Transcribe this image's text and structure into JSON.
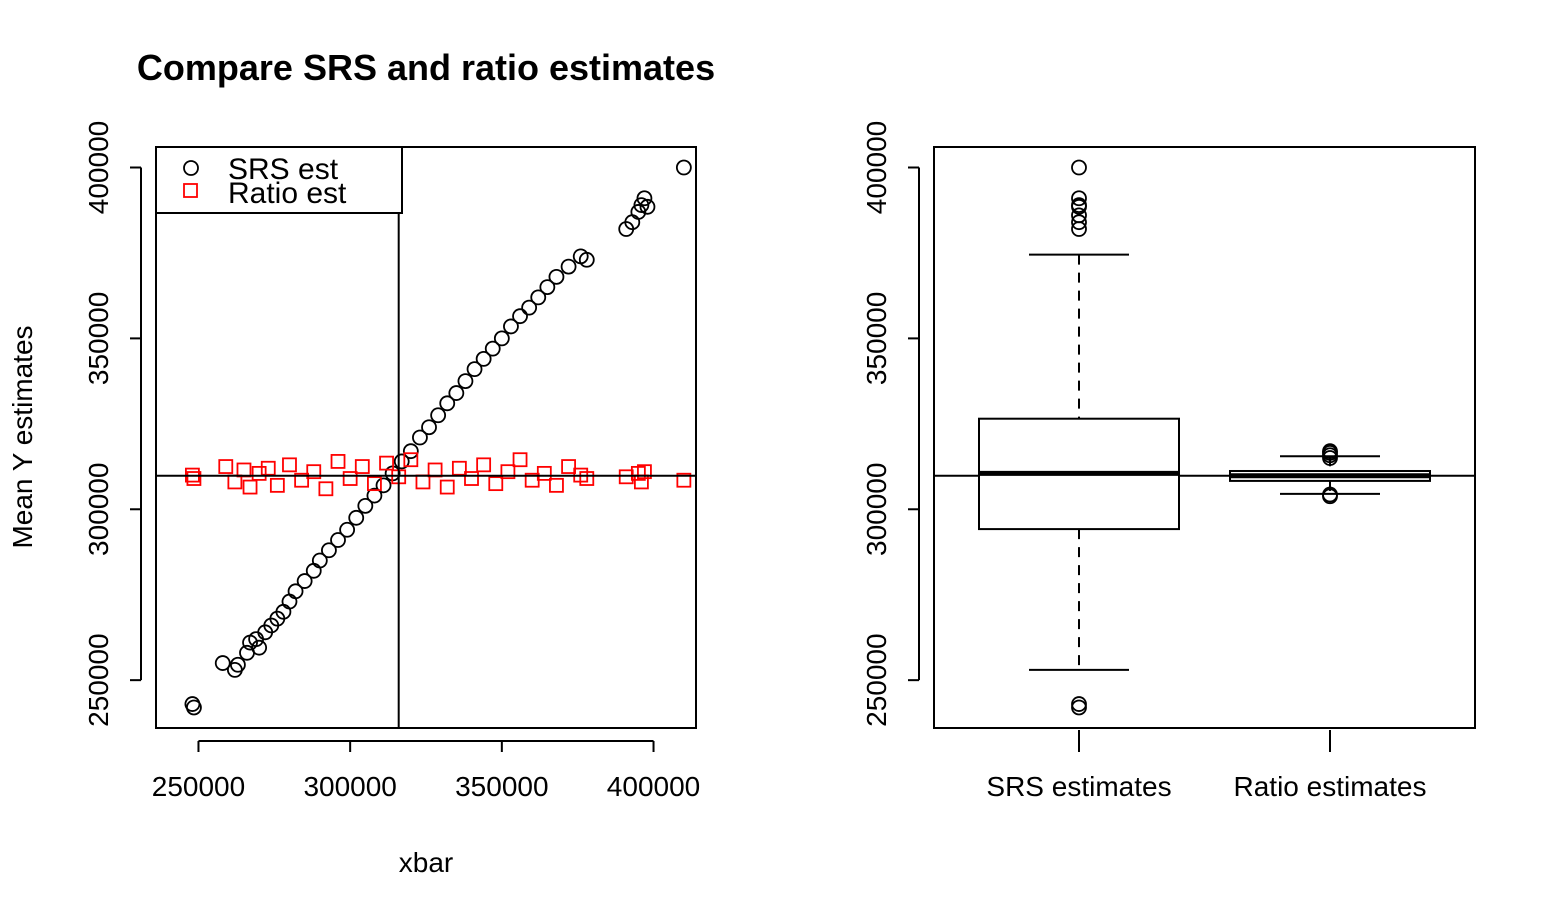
{
  "chart_data": [
    {
      "type": "scatter",
      "title": "Compare SRS and ratio estimates",
      "xlabel": "xbar",
      "ylabel": "Mean Y estimates",
      "xlim": [
        236000,
        414000
      ],
      "ylim": [
        236000,
        406000
      ],
      "xticks": [
        "250000",
        "300000",
        "350000",
        "400000"
      ],
      "yticks": [
        "250000",
        "300000",
        "350000",
        "400000"
      ],
      "reference_lines": {
        "vertical_x": 316000,
        "horizontal_y": 309800
      },
      "legend": {
        "position": "top-left",
        "entries": [
          {
            "label": "SRS est",
            "marker": "circle",
            "color": "#000000"
          },
          {
            "label": "Ratio est",
            "marker": "square",
            "color": "#ff0000"
          }
        ]
      },
      "series": [
        {
          "name": "SRS est",
          "marker": "circle",
          "color": "#000000",
          "points": [
            [
              248000,
              243000
            ],
            [
              248500,
              242000
            ],
            [
              258000,
              255000
            ],
            [
              262000,
              253000
            ],
            [
              263000,
              254500
            ],
            [
              266000,
              258000
            ],
            [
              267000,
              261000
            ],
            [
              269000,
              262000
            ],
            [
              270000,
              259500
            ],
            [
              272000,
              264000
            ],
            [
              274000,
              266000
            ],
            [
              276000,
              268000
            ],
            [
              278000,
              270000
            ],
            [
              280000,
              273000
            ],
            [
              282000,
              276000
            ],
            [
              285000,
              279000
            ],
            [
              288000,
              282000
            ],
            [
              290000,
              285000
            ],
            [
              293000,
              288000
            ],
            [
              296000,
              291000
            ],
            [
              299000,
              294000
            ],
            [
              302000,
              297500
            ],
            [
              305000,
              301000
            ],
            [
              308000,
              304000
            ],
            [
              311000,
              307000
            ],
            [
              314000,
              310500
            ],
            [
              317000,
              314000
            ],
            [
              320000,
              317000
            ],
            [
              323000,
              321000
            ],
            [
              326000,
              324000
            ],
            [
              329000,
              327500
            ],
            [
              332000,
              331000
            ],
            [
              335000,
              334000
            ],
            [
              338000,
              337500
            ],
            [
              341000,
              341000
            ],
            [
              344000,
              344000
            ],
            [
              347000,
              347000
            ],
            [
              350000,
              350000
            ],
            [
              353000,
              353500
            ],
            [
              356000,
              356500
            ],
            [
              359000,
              359000
            ],
            [
              362000,
              362000
            ],
            [
              365000,
              365000
            ],
            [
              368000,
              368000
            ],
            [
              372000,
              371000
            ],
            [
              376000,
              374000
            ],
            [
              378000,
              373000
            ],
            [
              391000,
              382000
            ],
            [
              393000,
              384000
            ],
            [
              395000,
              387000
            ],
            [
              396000,
              389000
            ],
            [
              397000,
              391000
            ],
            [
              398000,
              388500
            ],
            [
              410000,
              400000
            ]
          ]
        },
        {
          "name": "Ratio est",
          "marker": "square",
          "color": "#ff0000",
          "points": [
            [
              248000,
              310000
            ],
            [
              248500,
              309000
            ],
            [
              259000,
              312500
            ],
            [
              262000,
              308000
            ],
            [
              265000,
              311500
            ],
            [
              267000,
              306500
            ],
            [
              270000,
              310500
            ],
            [
              273000,
              312000
            ],
            [
              276000,
              307000
            ],
            [
              280000,
              313000
            ],
            [
              284000,
              308500
            ],
            [
              288000,
              311000
            ],
            [
              292000,
              306000
            ],
            [
              296000,
              314000
            ],
            [
              300000,
              309000
            ],
            [
              304000,
              312500
            ],
            [
              308000,
              307500
            ],
            [
              312000,
              313500
            ],
            [
              316000,
              309500
            ],
            [
              320000,
              314500
            ],
            [
              324000,
              308000
            ],
            [
              328000,
              311500
            ],
            [
              332000,
              306500
            ],
            [
              336000,
              312000
            ],
            [
              340000,
              309000
            ],
            [
              344000,
              313000
            ],
            [
              348000,
              307500
            ],
            [
              352000,
              311000
            ],
            [
              356000,
              314500
            ],
            [
              360000,
              308500
            ],
            [
              364000,
              310500
            ],
            [
              368000,
              307000
            ],
            [
              372000,
              312500
            ],
            [
              376000,
              310000
            ],
            [
              378000,
              309000
            ],
            [
              391000,
              309500
            ],
            [
              395000,
              310500
            ],
            [
              396000,
              308000
            ],
            [
              397000,
              311000
            ],
            [
              410000,
              308500
            ]
          ]
        }
      ]
    },
    {
      "type": "boxplot",
      "ylim": [
        236000,
        406000
      ],
      "yticks": [
        "250000",
        "300000",
        "350000",
        "400000"
      ],
      "reference_lines": {
        "horizontal_y": 309800
      },
      "boxes": [
        {
          "label": "SRS estimates",
          "min": 253000,
          "q1": 294200,
          "median": 310500,
          "q3": 326500,
          "max": 374500,
          "outliers": [
            400000,
            391000,
            389000,
            388500,
            386000,
            384000,
            382000,
            243000,
            242000
          ]
        },
        {
          "label": "Ratio estimates",
          "min": 304500,
          "q1": 308300,
          "median": 309800,
          "q3": 311200,
          "max": 315500,
          "outliers": [
            317000,
            316500,
            315800,
            315000,
            304300,
            303800
          ]
        }
      ]
    }
  ]
}
